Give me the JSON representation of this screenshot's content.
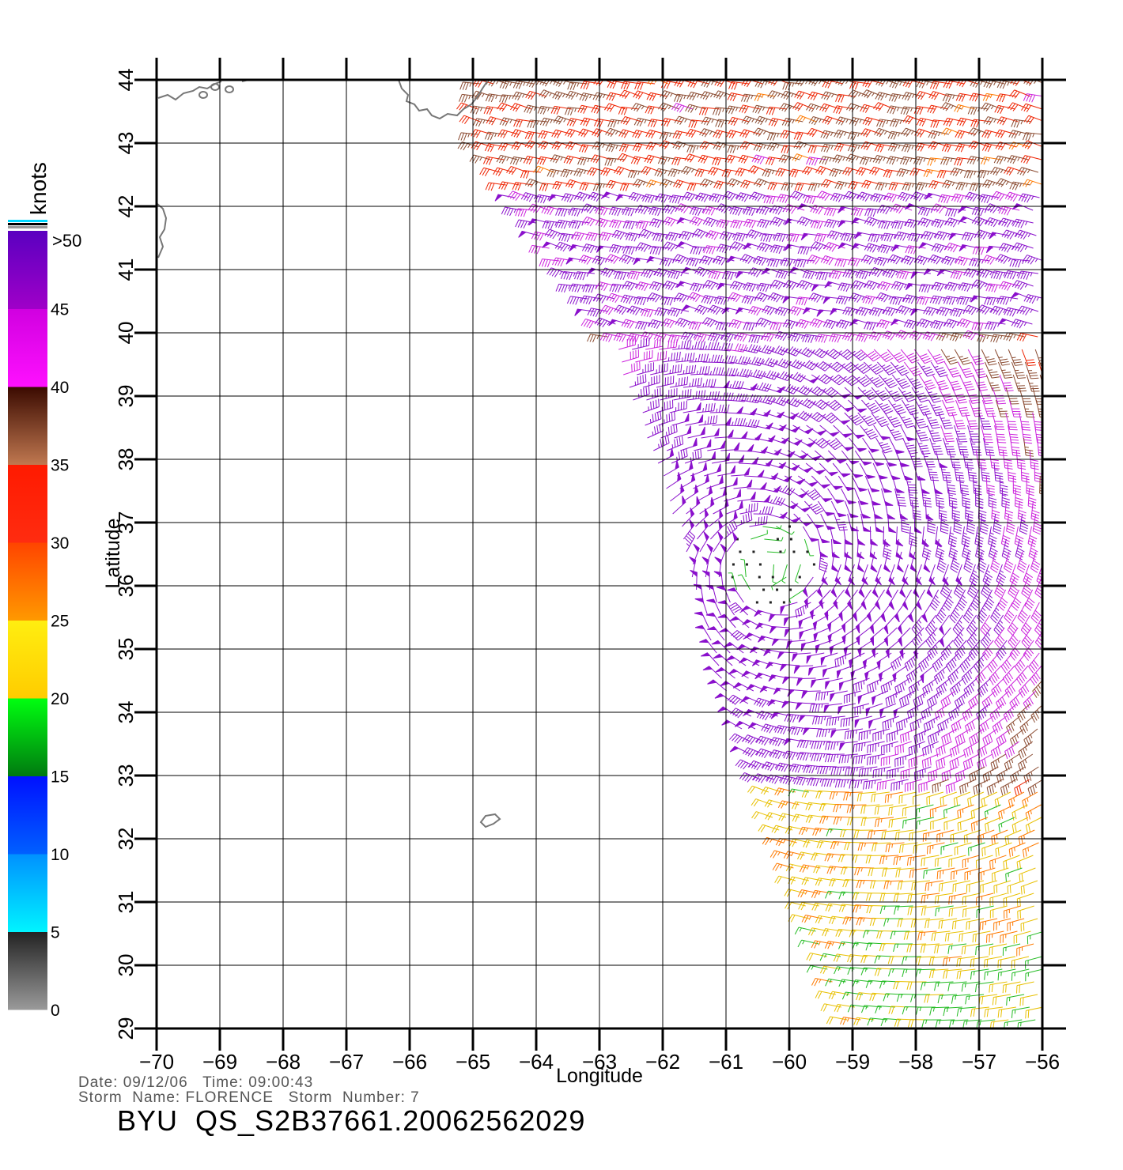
{
  "map": {
    "lon_ticks": [
      "−70",
      "−69",
      "−68",
      "−67",
      "−66",
      "−65",
      "−64",
      "−63",
      "−62",
      "−61",
      "−60",
      "−59",
      "−58",
      "−57",
      "−56"
    ],
    "lat_ticks": [
      "29",
      "30",
      "31",
      "32",
      "33",
      "34",
      "35",
      "36",
      "37",
      "38",
      "39",
      "40",
      "41",
      "42",
      "43",
      "44"
    ],
    "lon_range": [
      -70,
      -56
    ],
    "lat_range": [
      29,
      44
    ],
    "xlabel": "Longitude",
    "ylabel": "Latitude",
    "grid": true,
    "coast_color": "#777777"
  },
  "legend": {
    "unit_label": "knots",
    "over_label": ">50",
    "labels": [
      "45",
      "40",
      "35",
      "30",
      "25",
      "20",
      "15",
      "10",
      "5",
      "0"
    ],
    "stops": [
      {
        "from": 0,
        "to": 5,
        "top": "#222222",
        "bottom": "#9a9a9a"
      },
      {
        "from": 5,
        "to": 10,
        "top": "#0090ff",
        "bottom": "#00f4ff"
      },
      {
        "from": 10,
        "to": 15,
        "top": "#0010ff",
        "bottom": "#0060ff"
      },
      {
        "from": 15,
        "to": 20,
        "top": "#00ff10",
        "bottom": "#007a10"
      },
      {
        "from": 20,
        "to": 25,
        "top": "#ffee10",
        "bottom": "#ffcc00"
      },
      {
        "from": 25,
        "to": 30,
        "top": "#ff4400",
        "bottom": "#ff9900"
      },
      {
        "from": 30,
        "to": 35,
        "top": "#ff1a00",
        "bottom": "#ff2c10"
      },
      {
        "from": 35,
        "to": 40,
        "top": "#3a0a00",
        "bottom": "#c07850"
      },
      {
        "from": 40,
        "to": 45,
        "top": "#d000e0",
        "bottom": "#ff10ff"
      },
      {
        "from": 45,
        "to": 50,
        "top": "#5a00c0",
        "bottom": "#a000c8"
      }
    ],
    "cap_colors": [
      "#00d8ff",
      "#000000",
      "#9a9a9a"
    ]
  },
  "footer": {
    "date_line": "Date: 09/12/06   Time: 09:00:43",
    "storm_line": "Storm  Name: FLORENCE   Storm  Number: 7",
    "product": "BYU  QS_S2B37661.20062562029"
  }
}
